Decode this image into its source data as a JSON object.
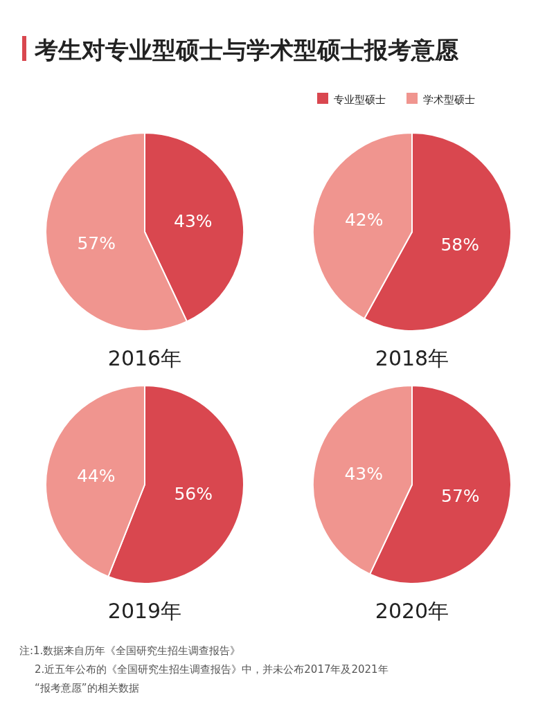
{
  "chart_data": [
    {
      "type": "other",
      "title": "考生对专业型硕士与学术型硕士报考意愿"
    },
    {
      "type": "pie",
      "xlabel": "2016年",
      "categories": [
        null,
        null
      ],
      "values": [
        43,
        57
      ],
      "colors": [
        "#d9474f",
        "#f0958f"
      ],
      "value_labels": [
        "43%",
        "57%"
      ]
    },
    {
      "type": "pie",
      "xlabel": "2018年",
      "categories": [
        "专业型硕士",
        "学术型硕士"
      ],
      "values": [
        58,
        42
      ],
      "colors": [
        "#d9474f",
        "#f0958f"
      ],
      "value_labels": [
        "58%",
        "42%"
      ],
      "legend": "top"
    },
    {
      "type": "pie",
      "xlabel": "2019年",
      "categories": [
        null,
        null
      ],
      "values": [
        56,
        44
      ],
      "colors": [
        "#d9474f",
        "#f0958f"
      ],
      "value_labels": [
        "56%",
        "44%"
      ]
    },
    {
      "type": "pie",
      "xlabel": "2020年",
      "categories": [
        null,
        null
      ],
      "values": [
        57,
        43
      ],
      "colors": [
        "#d9474f",
        "#f0958f"
      ],
      "value_labels": [
        "57%",
        "43%"
      ]
    },
    {
      "type": "other",
      "annotations": [
        "注:1.数据来自历年《全国研究生招生调查报告》",
        "2.近五年公布的《全国研究生招生调查报告》中，并未公布2017年及2021年",
        "“报考意愿”的相关数据"
      ]
    }
  ]
}
